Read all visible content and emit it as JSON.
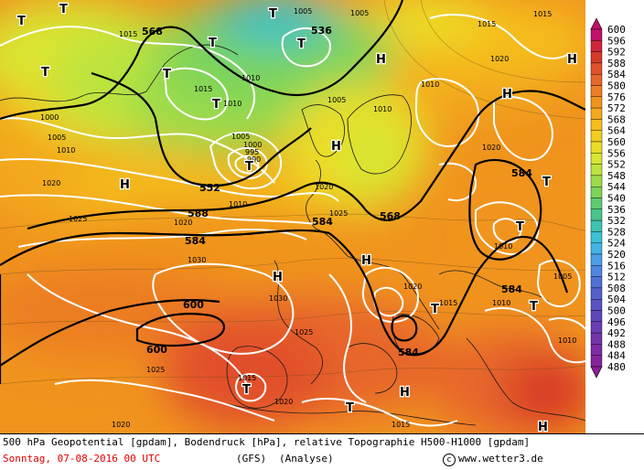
{
  "legend": {
    "levels": [
      "600",
      "596",
      "592",
      "588",
      "584",
      "580",
      "576",
      "572",
      "568",
      "564",
      "560",
      "556",
      "552",
      "548",
      "544",
      "540",
      "536",
      "532",
      "528",
      "524",
      "520",
      "516",
      "512",
      "508",
      "504",
      "500",
      "496",
      "492",
      "488",
      "484",
      "480"
    ],
    "colors": [
      "#c0106a",
      "#d1253c",
      "#d83a28",
      "#e1502a",
      "#e7662a",
      "#ec7d22",
      "#f0941e",
      "#f3a91c",
      "#f5be1c",
      "#f2cf1c",
      "#ecdc28",
      "#d8e630",
      "#bde43c",
      "#9edc48",
      "#7ed458",
      "#5fcb70",
      "#48c48e",
      "#3ec3b2",
      "#3cc3d6",
      "#44b4e6",
      "#4b9ee6",
      "#4e86e0",
      "#5070d6",
      "#5460cc",
      "#5a52c4",
      "#6046bc",
      "#6a3cb4",
      "#7434ac",
      "#7c2ca4",
      "#84249c",
      "#8a1c94"
    ]
  },
  "map": {
    "geopotential_labels": [
      "568",
      "536",
      "552",
      "588",
      "584",
      "584",
      "568",
      "584",
      "600",
      "600",
      "584",
      "584",
      "584"
    ],
    "pressure_labels": [
      "1000",
      "1005",
      "1015",
      "1015",
      "1010",
      "1010",
      "1010",
      "1005",
      "1010",
      "1000",
      "1005",
      "995",
      "990",
      "1000",
      "1005",
      "1015",
      "1020",
      "1020",
      "1025",
      "1030",
      "1030",
      "1025",
      "1020",
      "1025",
      "1030",
      "1020",
      "1015",
      "1015",
      "1010",
      "1010",
      "1010",
      "1005",
      "1020",
      "1010",
      "1015",
      "1020",
      "1025",
      "1015",
      "1020",
      "1020",
      "1020",
      "1010",
      "1015",
      "1010",
      "1005"
    ],
    "pressure_systems": [
      "T",
      "T",
      "T",
      "T",
      "T",
      "T",
      "T",
      "T",
      "T",
      "T",
      "T",
      "T",
      "T",
      "T",
      "T",
      "H",
      "H",
      "H",
      "H",
      "H",
      "H",
      "H",
      "H",
      "H",
      "H",
      "H",
      "H"
    ]
  },
  "footer": {
    "line1": "500 hPa Geopotential [gpdam], Bodendruck [hPa], relative Topographie H500-H1000 [gpdam]",
    "date": "Sonntag, 07-08-2016  00 UTC",
    "model": "(GFS)",
    "mode": "(Analyse)",
    "site": "www.wetter3.de"
  }
}
